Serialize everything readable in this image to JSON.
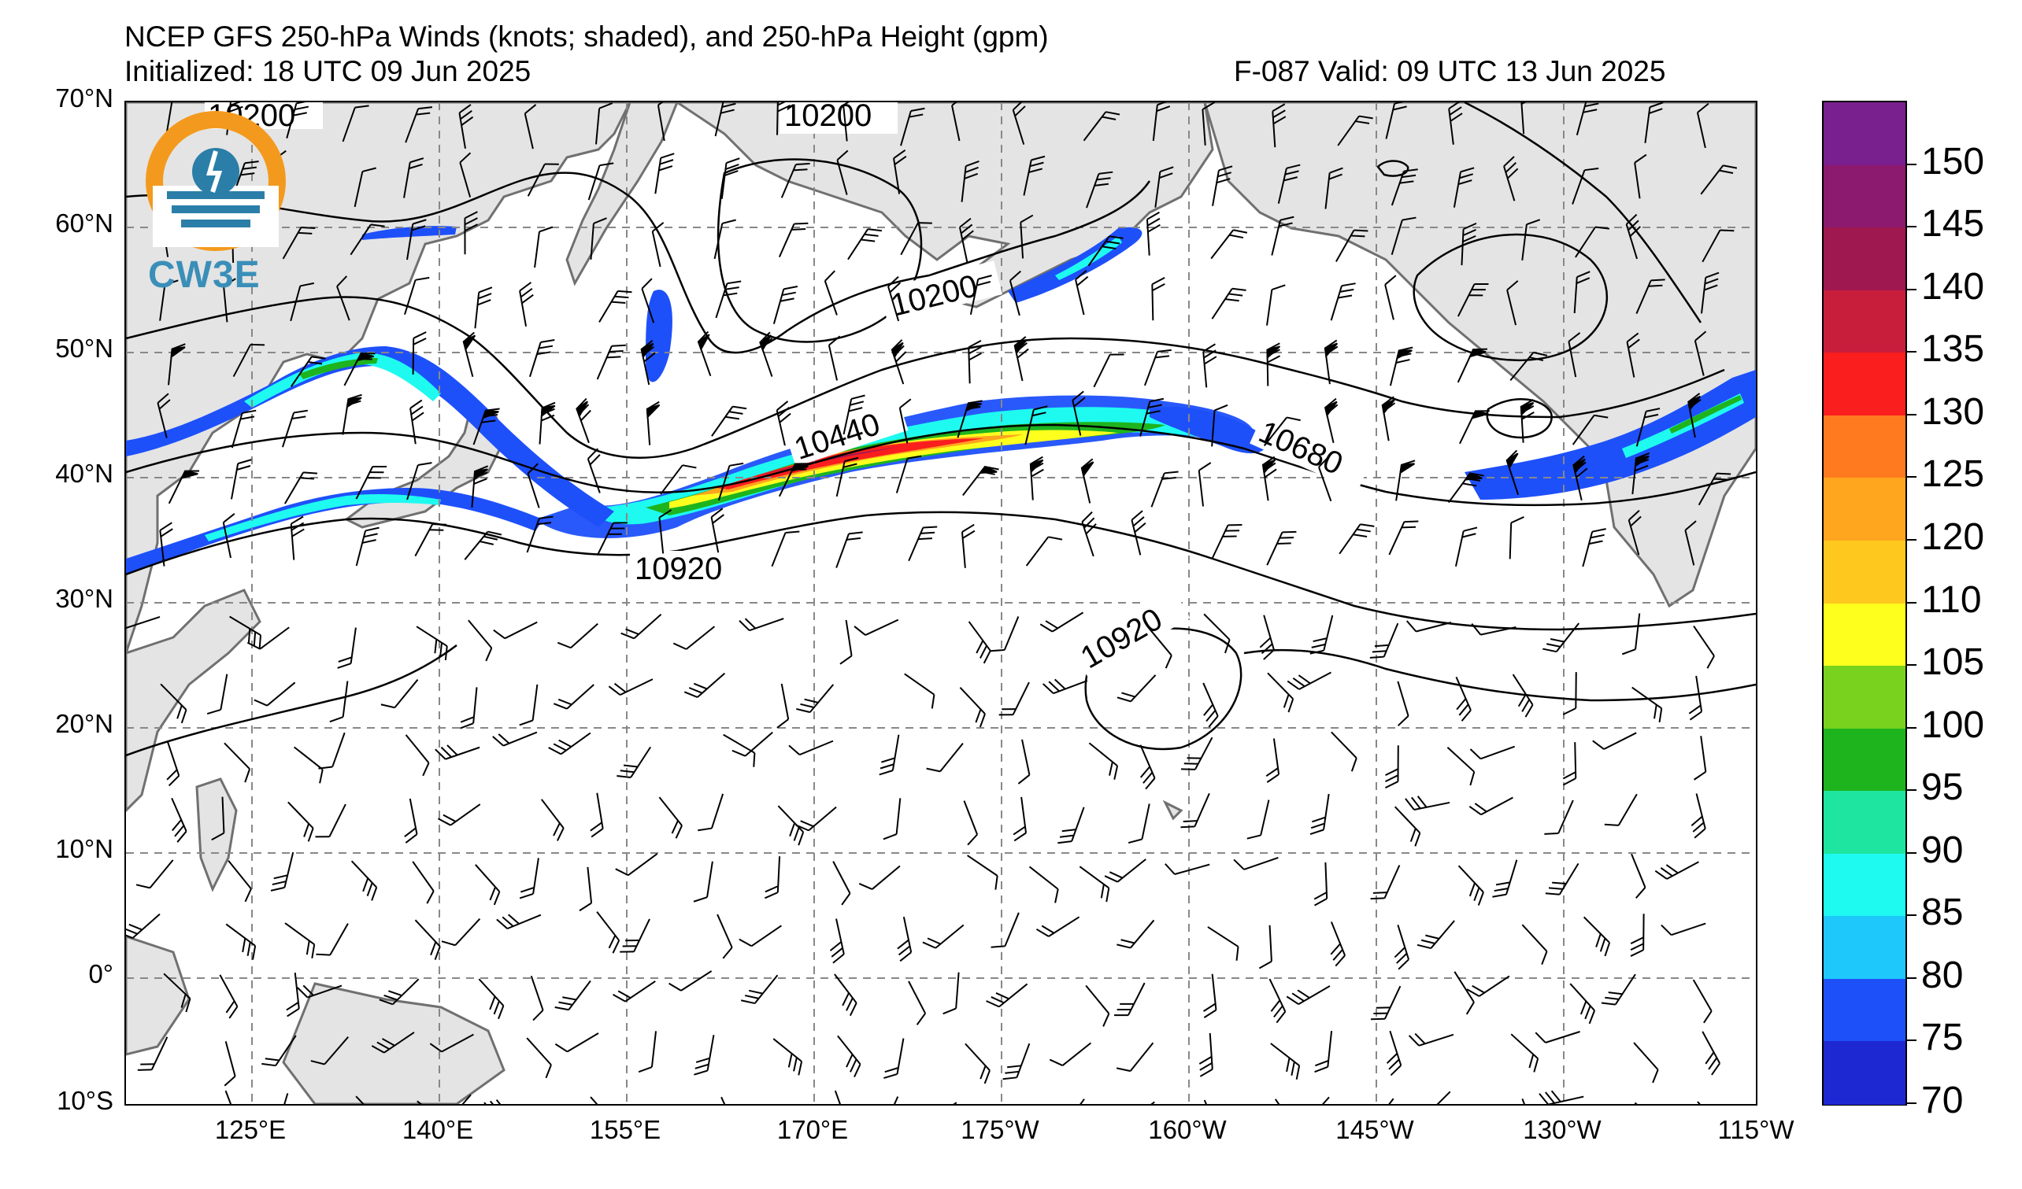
{
  "header": {
    "title": "NCEP GFS 250-hPa Winds (knots; shaded), and 250-hPa Height (gpm)",
    "initialized": "Initialized: 18 UTC 09 Jun 2025",
    "valid": "F-087  Valid: 09 UTC 13 Jun 2025"
  },
  "logo": {
    "text": "CW3E"
  },
  "axes": {
    "lat_labels": [
      "70°N",
      "60°N",
      "50°N",
      "40°N",
      "30°N",
      "20°N",
      "10°N",
      "0°",
      "10°S"
    ],
    "lon_labels": [
      "125°E",
      "140°E",
      "155°E",
      "170°E",
      "175°W",
      "160°W",
      "145°W",
      "130°W",
      "115°W"
    ]
  },
  "contour_labels": [
    "10200",
    "10200",
    "10200",
    "10440",
    "10680",
    "10920",
    "10920"
  ],
  "colorbar": {
    "labels": [
      "150",
      "145",
      "140",
      "135",
      "130",
      "125",
      "120",
      "110",
      "105",
      "100",
      "95",
      "90",
      "85",
      "80",
      "75",
      "70"
    ],
    "colors": [
      "#7a1f8e",
      "#8c1a6e",
      "#a01850",
      "#c81e3c",
      "#fa1e1e",
      "#ff7a1e",
      "#ffa51e",
      "#ffc81e",
      "#ffff1e",
      "#78d21e",
      "#1eb41e",
      "#1ee6a0",
      "#1efaf0",
      "#1ec8fa",
      "#1e50fa",
      "#1e28d2"
    ]
  },
  "colors": {
    "land": "#e4e4e4",
    "coast": "#707070",
    "grid": "#888888"
  }
}
